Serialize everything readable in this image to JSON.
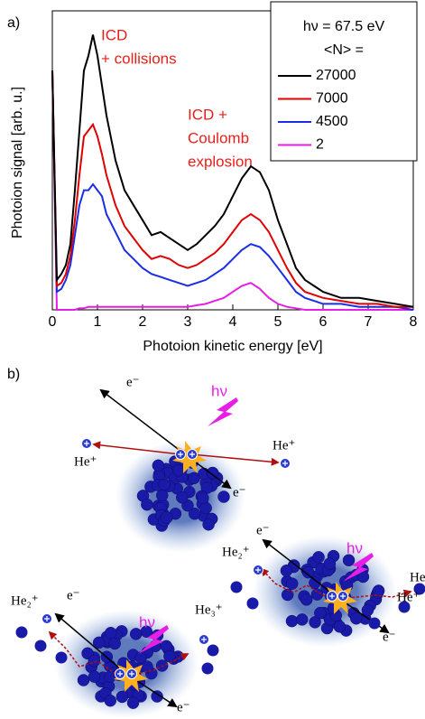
{
  "chart_data": {
    "type": "line",
    "panel_label": "a)",
    "x_label": "Photoion kinetic energy [eV]",
    "y_label": "Photoion signal [arb. u.]",
    "annotations": [
      "ICD",
      "+ collisions",
      "ICD +",
      "Coulomb",
      "explosion"
    ],
    "legend_title": "hν = 67.5 eV",
    "legend_subtitle": "<N> =",
    "legend_position": "upper right",
    "x": [
      0,
      0.1,
      0.2,
      0.3,
      0.4,
      0.5,
      0.6,
      0.7,
      0.8,
      0.9,
      1.0,
      1.1,
      1.2,
      1.4,
      1.6,
      1.8,
      2.0,
      2.2,
      2.4,
      2.6,
      2.8,
      3.0,
      3.2,
      3.4,
      3.6,
      3.8,
      4.0,
      4.2,
      4.4,
      4.6,
      4.8,
      5.0,
      5.2,
      5.4,
      5.6,
      5.8,
      6.0,
      6.4,
      6.8,
      7.2,
      7.6,
      8.0
    ],
    "series": [
      {
        "name": "27000",
        "color": "#000000",
        "values": [
          80,
          10,
          12,
          15,
          22,
          40,
          60,
          80,
          85,
          92,
          85,
          75,
          65,
          50,
          40,
          35,
          30,
          25,
          26,
          24,
          22,
          20,
          22,
          25,
          28,
          32,
          38,
          44,
          48,
          46,
          40,
          30,
          22,
          14,
          10,
          8,
          6,
          4,
          4,
          3,
          2,
          1
        ]
      },
      {
        "name": "7000",
        "color": "#e00000",
        "values": [
          80,
          8,
          9,
          12,
          18,
          30,
          45,
          58,
          60,
          62,
          58,
          52,
          45,
          35,
          28,
          24,
          20,
          17,
          18,
          17,
          15,
          14,
          15,
          17,
          19,
          22,
          26,
          30,
          32,
          30,
          26,
          20,
          14,
          9,
          6,
          5,
          4,
          3,
          2,
          2,
          1,
          1
        ]
      },
      {
        "name": "4500",
        "color": "#1a2ee6",
        "values": [
          80,
          6,
          7,
          10,
          15,
          25,
          35,
          40,
          40,
          42,
          40,
          38,
          32,
          26,
          20,
          17,
          14,
          12,
          11,
          10,
          9,
          8,
          9,
          10,
          12,
          14,
          17,
          20,
          22,
          21,
          18,
          14,
          10,
          6,
          4,
          3,
          2,
          2,
          1,
          1,
          1,
          0
        ]
      },
      {
        "name": "2",
        "color": "#e61ee6",
        "values": [
          80,
          0,
          0,
          0,
          0,
          0,
          0.5,
          0.5,
          1,
          1,
          1,
          1,
          1,
          1,
          1,
          1,
          1,
          1,
          1,
          1,
          1,
          1,
          1.5,
          2,
          3,
          4,
          6,
          8,
          9,
          7,
          4,
          2,
          1,
          0.5,
          0,
          0,
          0,
          0,
          0,
          0,
          0,
          0
        ]
      }
    ],
    "xlim": [
      0,
      8
    ],
    "xticks": [
      0,
      1,
      2,
      3,
      4,
      5,
      6,
      7,
      8
    ],
    "ylim": [
      0,
      100
    ]
  },
  "diagram": {
    "panel_label": "b)",
    "labels": [
      "e⁻",
      "hν",
      "He⁺",
      "He⁺",
      "e⁻",
      "e⁻",
      "hν",
      "He₂⁺",
      "He",
      "He⁺",
      "e⁻",
      "e⁻",
      "hν",
      "He₂⁺",
      "He₃⁺",
      "e⁻"
    ]
  }
}
